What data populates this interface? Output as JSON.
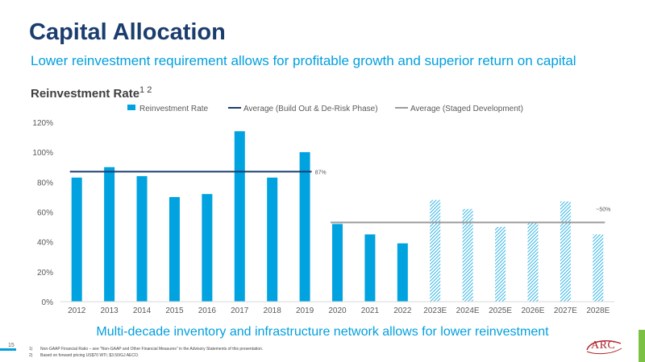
{
  "slide": {
    "title": "Capital Allocation",
    "subtitle": "Lower reinvestment requirement allows for profitable growth and superior return on capital",
    "chart_title": "Reinvestment Rate",
    "chart_title_sup": "1 2",
    "bottom_message": "Multi-decade inventory and infrastructure network allows for lower reinvestment",
    "page_number": "15",
    "footnotes": [
      {
        "num": "1)",
        "text": "Non-GAAP Financial Ratio – see \"Non-GAAP and Other Financial Measures\" in the Advisory Statements of this presentation."
      },
      {
        "num": "2)",
        "text": "Based on forward pricing US$70 WTI; $3.50/GJ AECO."
      }
    ],
    "logo_text": "ARC"
  },
  "colors": {
    "bar": "#00a3e0",
    "avg_build": "#1b3d6e",
    "avg_staged": "#9b9b9b",
    "axis_text": "#595959",
    "title": "#1b3d6e",
    "accent": "#009fdf"
  },
  "chart_data": {
    "type": "bar",
    "categories": [
      "2012",
      "2013",
      "2014",
      "2015",
      "2016",
      "2017",
      "2018",
      "2019",
      "2020",
      "2021",
      "2022",
      "2023E",
      "2024E",
      "2025E",
      "2026E",
      "2027E",
      "2028E"
    ],
    "series": [
      {
        "name": "Reinvestment Rate",
        "values": [
          83,
          90,
          84,
          70,
          72,
          114,
          83,
          100,
          52,
          45,
          39,
          68,
          62,
          50,
          53,
          67,
          45
        ],
        "estimated": [
          false,
          false,
          false,
          false,
          false,
          false,
          false,
          false,
          false,
          false,
          false,
          true,
          true,
          true,
          true,
          true,
          true
        ]
      }
    ],
    "reference_lines": [
      {
        "name": "Average (Build Out & De-Risk Phase)",
        "value": 87,
        "from": "2012",
        "to": "2019",
        "label": "87%"
      },
      {
        "name": "Average (Staged Development)",
        "value": 53,
        "from": "2020",
        "to": "2028E",
        "label": "~50%"
      }
    ],
    "ylim": [
      0,
      120
    ],
    "yticks": [
      "0%",
      "20%",
      "40%",
      "60%",
      "80%",
      "100%",
      "120%"
    ],
    "ytick_values": [
      0,
      20,
      40,
      60,
      80,
      100,
      120
    ],
    "grid": false,
    "legend_position": "top"
  }
}
